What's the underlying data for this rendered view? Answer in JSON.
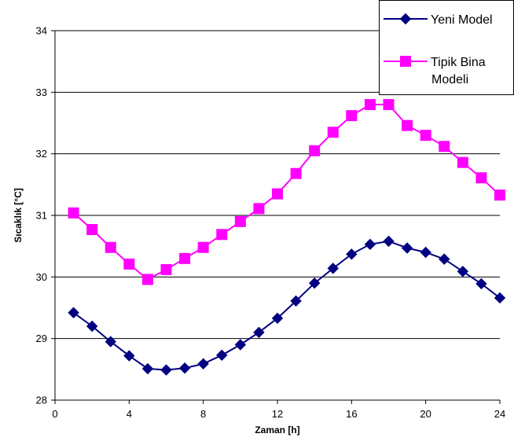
{
  "chart_data": {
    "type": "line",
    "title": "",
    "xlabel": "Zaman [h]",
    "ylabel": "Sıcaklık [°C]",
    "xlim": [
      0,
      24
    ],
    "ylim": [
      28,
      34
    ],
    "xticks": [
      0,
      4,
      8,
      12,
      16,
      20,
      24
    ],
    "yticks": [
      28,
      29,
      30,
      31,
      32,
      33,
      34
    ],
    "grid": "horizontal",
    "legend_position": "top-right",
    "x": [
      1,
      2,
      3,
      4,
      5,
      6,
      7,
      8,
      9,
      10,
      11,
      12,
      13,
      14,
      15,
      16,
      17,
      18,
      19,
      20,
      21,
      22,
      23,
      24
    ],
    "series": [
      {
        "name": "Yeni Model",
        "color": "#000080",
        "marker": "diamond",
        "values": [
          29.42,
          29.2,
          28.95,
          28.72,
          28.51,
          28.49,
          28.52,
          28.59,
          28.73,
          28.9,
          29.1,
          29.33,
          29.61,
          29.9,
          30.14,
          30.37,
          30.53,
          30.58,
          30.47,
          30.4,
          30.29,
          30.09,
          29.89,
          29.66
        ]
      },
      {
        "name": "Tipik Bina Modeli",
        "legend_lines": [
          "Tipik Bina",
          "Modeli"
        ],
        "color": "#FF00FF",
        "marker": "square",
        "values": [
          31.04,
          30.77,
          30.48,
          30.21,
          29.96,
          30.12,
          30.3,
          30.48,
          30.69,
          30.9,
          31.11,
          31.35,
          31.68,
          32.05,
          32.35,
          32.62,
          32.8,
          32.8,
          32.46,
          32.3,
          32.12,
          31.86,
          31.61,
          31.33
        ]
      }
    ]
  }
}
